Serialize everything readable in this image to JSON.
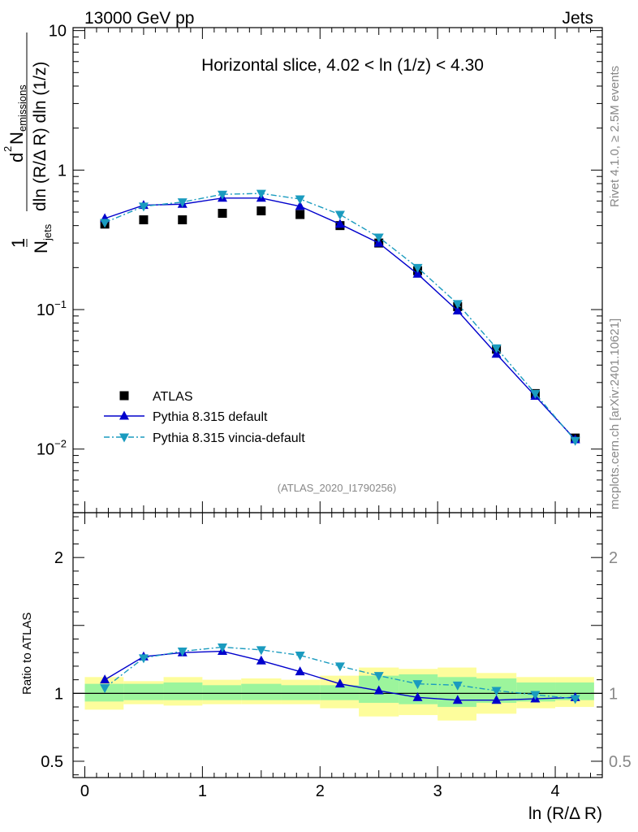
{
  "header": {
    "left": "13000 GeV pp",
    "right": "Jets"
  },
  "side_text": {
    "rivet": "Rivet 4.1.0, ≥ 2.5M events",
    "mcplots": "mcplots.cern.ch [arXiv:2401.10621]"
  },
  "chart_data": [
    {
      "type": "scatter",
      "panel": "main",
      "title": "Horizontal slice, 4.02 < ln (1/z) < 4.30",
      "watermark": "(ATLAS_2020_I1790256)",
      "ylabel": {
        "prefix": "1",
        "njets": "N",
        "njets_sub": "jets",
        "num": "d",
        "num_sup": "2",
        "num_N": "N",
        "num_sub": "emissions",
        "den": "dln (R/Δ R) dln (1/z)"
      },
      "xlim": [
        -0.1,
        4.4
      ],
      "ylim": [
        0.0035,
        10.5
      ],
      "yscale": "log",
      "ytick_labels": [
        {
          "value": 10,
          "label": "10"
        },
        {
          "value": 1,
          "label": "1"
        },
        {
          "value": 0.1,
          "base": "10",
          "exp": "−1"
        },
        {
          "value": 0.01,
          "base": "10",
          "exp": "−2"
        }
      ],
      "legend": [
        "ATLAS",
        "Pythia 8.315 default",
        "Pythia 8.315 vincia-default"
      ],
      "legend_position": "bottom-left",
      "x": [
        0.17,
        0.5,
        0.83,
        1.17,
        1.5,
        1.83,
        2.17,
        2.5,
        2.83,
        3.17,
        3.5,
        3.83,
        4.17
      ],
      "series": [
        {
          "name": "ATLAS",
          "marker": "square",
          "color": "#000000",
          "values": [
            0.41,
            0.44,
            0.44,
            0.49,
            0.51,
            0.48,
            0.4,
            0.3,
            0.19,
            0.105,
            0.052,
            0.025,
            0.012
          ]
        },
        {
          "name": "Pythia 8.315 default",
          "marker": "triangle-up",
          "color": "#0000cc",
          "dash": "",
          "values": [
            0.45,
            0.56,
            0.57,
            0.63,
            0.63,
            0.55,
            0.41,
            0.3,
            0.18,
            0.098,
            0.048,
            0.024,
            0.0117
          ]
        },
        {
          "name": "Pythia 8.315 vincia-default",
          "marker": "triangle-down",
          "color": "#1a9bbf",
          "dash": "7,3,2,3",
          "values": [
            0.42,
            0.55,
            0.59,
            0.67,
            0.68,
            0.62,
            0.48,
            0.33,
            0.2,
            0.11,
            0.053,
            0.025,
            0.0115
          ]
        }
      ]
    },
    {
      "type": "line",
      "panel": "ratio",
      "ylabel": "Ratio to ATLAS",
      "xlabel": "ln (R/Δ R)",
      "xlim": [
        -0.1,
        4.4
      ],
      "ylim": [
        0.38,
        2.33
      ],
      "xtick_labels": [
        {
          "value": 0,
          "label": "0"
        },
        {
          "value": 1,
          "label": "1"
        },
        {
          "value": 2,
          "label": "2"
        },
        {
          "value": 3,
          "label": "3"
        },
        {
          "value": 4,
          "label": "4"
        }
      ],
      "ytick_labels": [
        {
          "value": 2,
          "label": "2"
        },
        {
          "value": 1,
          "label": "1"
        },
        {
          "value": 0.5,
          "label": "0.5"
        }
      ],
      "bin_edges": [
        0.0,
        0.33,
        0.67,
        1.0,
        1.33,
        1.67,
        2.0,
        2.33,
        2.67,
        3.0,
        3.33,
        3.67,
        4.0,
        4.33
      ],
      "band_inner": [
        [
          0.94,
          1.07
        ],
        [
          0.95,
          1.07
        ],
        [
          0.95,
          1.08
        ],
        [
          0.95,
          1.06
        ],
        [
          0.95,
          1.07
        ],
        [
          0.95,
          1.06
        ],
        [
          0.95,
          1.06
        ],
        [
          0.93,
          1.13
        ],
        [
          0.92,
          1.14
        ],
        [
          0.9,
          1.12
        ],
        [
          0.93,
          1.11
        ],
        [
          0.94,
          1.08
        ],
        [
          0.95,
          1.08
        ]
      ],
      "band_outer": [
        [
          0.88,
          1.12
        ],
        [
          0.92,
          1.09
        ],
        [
          0.91,
          1.12
        ],
        [
          0.92,
          1.1
        ],
        [
          0.92,
          1.11
        ],
        [
          0.92,
          1.1
        ],
        [
          0.89,
          1.13
        ],
        [
          0.83,
          1.19
        ],
        [
          0.84,
          1.18
        ],
        [
          0.8,
          1.19
        ],
        [
          0.85,
          1.15
        ],
        [
          0.89,
          1.12
        ],
        [
          0.9,
          1.12
        ]
      ],
      "x": [
        0.17,
        0.5,
        0.83,
        1.17,
        1.5,
        1.83,
        2.17,
        2.5,
        2.83,
        3.17,
        3.5,
        3.83,
        4.17
      ],
      "series": [
        {
          "name": "Pythia 8.315 default",
          "marker": "triangle-up",
          "color": "#0000cc",
          "dash": "",
          "values": [
            1.1,
            1.27,
            1.3,
            1.31,
            1.24,
            1.16,
            1.07,
            1.02,
            0.97,
            0.95,
            0.95,
            0.96,
            0.97
          ]
        },
        {
          "name": "Pythia 8.315 vincia-default",
          "marker": "triangle-down",
          "color": "#1a9bbf",
          "dash": "7,3,2,3",
          "values": [
            1.04,
            1.26,
            1.31,
            1.34,
            1.32,
            1.28,
            1.2,
            1.13,
            1.07,
            1.06,
            1.02,
            0.99,
            0.96
          ]
        }
      ]
    }
  ]
}
